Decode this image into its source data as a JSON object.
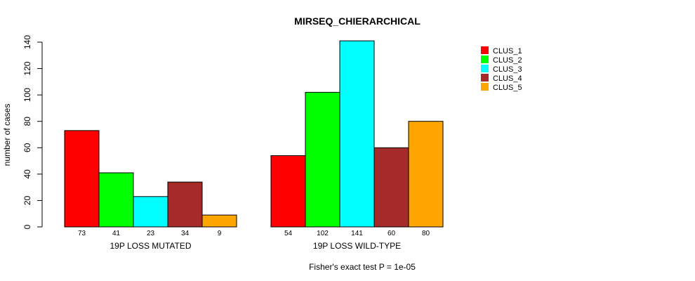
{
  "chart_data": {
    "type": "bar",
    "title": "MIRSEQ_CHIERARCHICAL",
    "ylabel": "number of cases",
    "ylim": [
      0,
      140
    ],
    "yticks": [
      0,
      20,
      40,
      60,
      80,
      100,
      120,
      140
    ],
    "groups": [
      "19P LOSS MUTATED",
      "19P LOSS WILD-TYPE"
    ],
    "series": [
      {
        "name": "CLUS_1",
        "color": "#ff0000",
        "values": [
          73,
          54
        ]
      },
      {
        "name": "CLUS_2",
        "color": "#00ff00",
        "values": [
          41,
          102
        ]
      },
      {
        "name": "CLUS_3",
        "color": "#00ffff",
        "values": [
          23,
          141
        ]
      },
      {
        "name": "CLUS_4",
        "color": "#a52a2a",
        "values": [
          34,
          60
        ]
      },
      {
        "name": "CLUS_5",
        "color": "#ffa500",
        "values": [
          9,
          80
        ]
      }
    ],
    "legend_position": "top-right",
    "footnote": "Fisher's exact test P = 1e-05"
  }
}
